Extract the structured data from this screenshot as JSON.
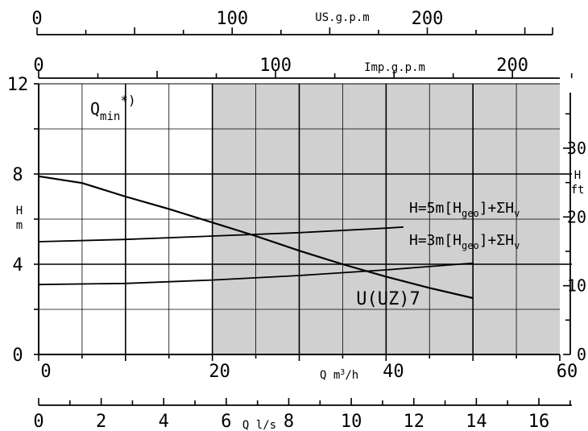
{
  "chart_data": {
    "type": "line",
    "title": "",
    "xlabel": "Q m³/h",
    "ylabel": "H m",
    "xlim": [
      0,
      60
    ],
    "ylim": [
      0,
      12
    ],
    "grid": true,
    "shaded_range_x": [
      20,
      60
    ],
    "shading_color": "#d0d0d0",
    "annotation_qmin": "Q_min *)",
    "x_ticks": [
      "0",
      "20",
      "40",
      "60"
    ],
    "y_ticks": [
      "0",
      "4",
      "8",
      "12"
    ],
    "secondary_axes": {
      "us_gpm": {
        "label": "US.g.p.m",
        "ticks": [
          "0",
          "100",
          "200"
        ],
        "max": 264.2
      },
      "imp_gpm": {
        "label": "Imp.g.p.m",
        "ticks": [
          "0",
          "100",
          "200"
        ],
        "max": 220
      },
      "ls": {
        "label": "Q l/s",
        "ticks": [
          "0",
          "2",
          "4",
          "6",
          "8",
          "10",
          "12",
          "14",
          "16"
        ],
        "max": 16.67
      },
      "h_ft": {
        "label": "H ft",
        "ticks": [
          "0",
          "10",
          "20",
          "30"
        ],
        "max": 39.37
      }
    },
    "series": [
      {
        "name": "U(UZ)7",
        "x": [
          0,
          5,
          10,
          15,
          20,
          25,
          30,
          35,
          40,
          45,
          50
        ],
        "y": [
          7.9,
          7.6,
          7.0,
          6.45,
          5.85,
          5.25,
          4.6,
          4.0,
          3.45,
          2.95,
          2.5
        ]
      },
      {
        "name": "H=5m[Hgeo]+ΣHv",
        "x": [
          0,
          10,
          20,
          30,
          40,
          42
        ],
        "y": [
          5.0,
          5.1,
          5.25,
          5.4,
          5.6,
          5.65
        ]
      },
      {
        "name": "H=3m[Hgeo]+ΣHv",
        "x": [
          0,
          10,
          20,
          30,
          40,
          50
        ],
        "y": [
          3.1,
          3.15,
          3.3,
          3.5,
          3.75,
          4.05
        ]
      }
    ]
  }
}
